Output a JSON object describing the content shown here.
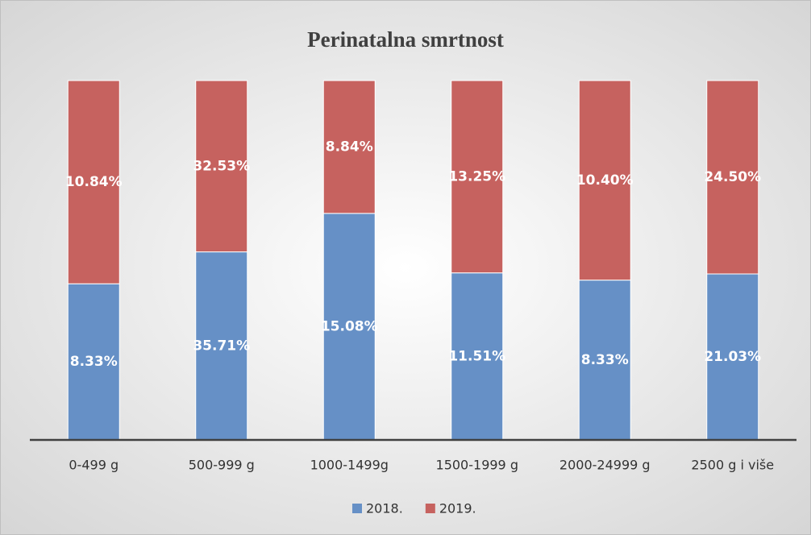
{
  "chart_data": {
    "type": "bar",
    "stack": "percent",
    "title": "Perinatalna smrtnost",
    "categories": [
      "0-499 g",
      "500-999 g",
      "1000-1499g",
      "1500-1999 g",
      "2000-24999 g",
      "2500 g i više"
    ],
    "series": [
      {
        "name": "2018.",
        "color": "#6690c6",
        "values": [
          8.33,
          35.71,
          15.08,
          11.51,
          8.33,
          21.03
        ],
        "value_labels": [
          "8.33%",
          "35.71%",
          "15.08%",
          "11.51%",
          "8.33%",
          "21.03%"
        ]
      },
      {
        "name": "2019.",
        "color": "#c6625f",
        "values": [
          10.84,
          32.53,
          8.84,
          13.25,
          10.4,
          24.5
        ],
        "value_labels": [
          "10.84%",
          "32.53%",
          "8.84%",
          "13.25%",
          "10.40%",
          "24.50%"
        ]
      }
    ]
  }
}
